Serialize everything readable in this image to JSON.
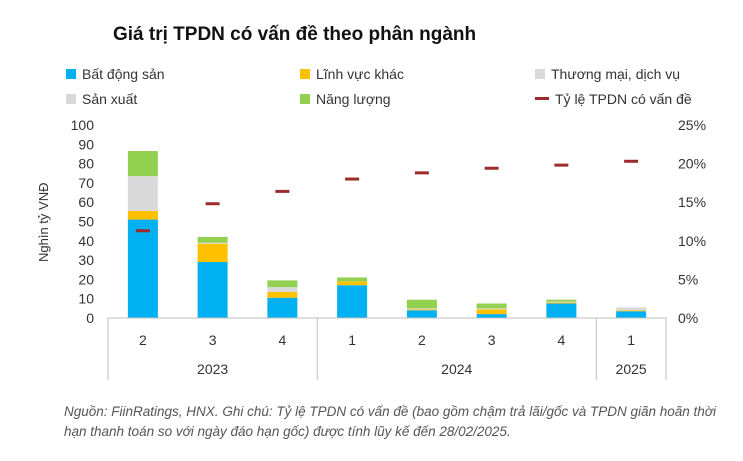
{
  "chart_data": {
    "type": "bar",
    "stacked": true,
    "title": "Giá trị TPDN có vấn đề theo phân ngành",
    "ylabel": "Nghìn tỷ VNĐ",
    "ylim": [
      0,
      100
    ],
    "yticks": [
      0,
      10,
      20,
      30,
      40,
      50,
      60,
      70,
      80,
      90,
      100
    ],
    "y2lim": [
      0,
      25
    ],
    "y2ticks": [
      "0%",
      "5%",
      "10%",
      "15%",
      "20%",
      "25%"
    ],
    "categories": [
      "2",
      "3",
      "4",
      "1",
      "2",
      "3",
      "4",
      "1"
    ],
    "groups": [
      {
        "label": "2023",
        "count": 3
      },
      {
        "label": "2024",
        "count": 4
      },
      {
        "label": "2025",
        "count": 1
      }
    ],
    "series": [
      {
        "name": "Bất động sản",
        "color": "#00b0f0",
        "values": [
          51,
          29,
          10.5,
          17,
          4,
          2,
          7.5,
          3.5
        ]
      },
      {
        "name": "Lĩnh vực khác",
        "color": "#ffc000",
        "values": [
          4.5,
          9.5,
          3,
          2,
          0.5,
          2.5,
          0.5,
          0.5
        ]
      },
      {
        "name": "Thương mại, dịch vụ",
        "color": "#d9d9d9",
        "values": [
          18,
          0.5,
          2.5,
          0,
          0.5,
          0.5,
          0.5,
          1.5
        ]
      },
      {
        "name": "Sản xuất",
        "color": "#d9d9d9",
        "values": [
          0,
          0,
          0,
          0,
          0,
          0,
          0,
          0
        ]
      },
      {
        "name": "Năng lượng",
        "color": "#92d050",
        "values": [
          13,
          3,
          3.5,
          2,
          4.5,
          2.5,
          1,
          0
        ]
      }
    ],
    "line_series": {
      "name": "Tỷ lệ TPDN có vấn đề",
      "color": "#9c2c2c",
      "axis": "secondary",
      "values": [
        11.3,
        14.8,
        16.4,
        18.0,
        18.8,
        19.4,
        19.8,
        20.3
      ]
    },
    "legend": "top"
  },
  "source_note": "Nguồn: FiinRatings, HNX. Ghi chú:  Tỷ lệ TPDN có vấn đề (bao gồm chậm trả lãi/gốc và TPDN giãn hoãn thời hạn thanh toán so với ngày đáo hạn gốc) được tính lũy kế đến 28/02/2025."
}
